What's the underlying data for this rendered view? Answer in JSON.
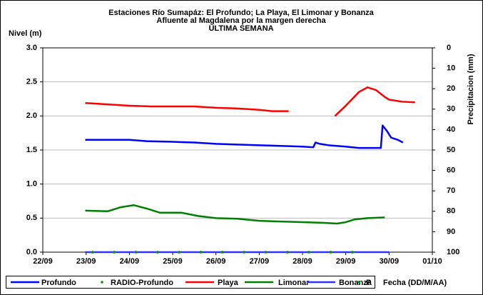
{
  "chart_data": {
    "type": "line",
    "title": [
      "Estaciones Río Sumapáz: El Profundo; La Playa, El Limonar y Bonanza",
      "Afluente al Magdalena por la margen derecha",
      "ULTIMA SEMANA"
    ],
    "ylabel": "Nivel (m)",
    "y2label": "Precipitacion (mm)",
    "xlabel": "Fecha (DD/M/AA)",
    "xlim": [
      0,
      9
    ],
    "xticks": [
      {
        "value": 0,
        "label": "22/09"
      },
      {
        "value": 1,
        "label": "23/09"
      },
      {
        "value": 2,
        "label": "24/09"
      },
      {
        "value": 3,
        "label": "25/09"
      },
      {
        "value": 4,
        "label": "26/09"
      },
      {
        "value": 5,
        "label": "27/09"
      },
      {
        "value": 6,
        "label": "28/09"
      },
      {
        "value": 7,
        "label": "29/09"
      },
      {
        "value": 8,
        "label": "30/09"
      },
      {
        "value": 9,
        "label": "01/10"
      }
    ],
    "ylim": [
      0,
      3
    ],
    "yticks": [
      {
        "value": 0,
        "label": "0.0"
      },
      {
        "value": 0.5,
        "label": "0.5"
      },
      {
        "value": 1,
        "label": "1.0"
      },
      {
        "value": 1.5,
        "label": "1.5"
      },
      {
        "value": 2,
        "label": "2.0"
      },
      {
        "value": 2.5,
        "label": "2.5"
      },
      {
        "value": 3,
        "label": "3.0"
      }
    ],
    "y2lim": [
      100,
      0
    ],
    "y2ticks": [
      0,
      10,
      20,
      30,
      40,
      50,
      60,
      70,
      80,
      90,
      100
    ],
    "grid": true,
    "legend": "bottom",
    "series": [
      {
        "name": "Profundo",
        "color": "#0000ff",
        "style": "line",
        "x": [
          0.98,
          2.0,
          2.4,
          3.0,
          3.5,
          4.0,
          4.5,
          5.0,
          5.5,
          6.0,
          6.25,
          6.3,
          6.4,
          6.6,
          7.0,
          7.3,
          7.81,
          7.85,
          7.95,
          8.05,
          8.2,
          8.32
        ],
        "values": [
          1.65,
          1.65,
          1.63,
          1.62,
          1.61,
          1.59,
          1.58,
          1.57,
          1.56,
          1.55,
          1.54,
          1.61,
          1.59,
          1.57,
          1.55,
          1.53,
          1.53,
          1.86,
          1.78,
          1.68,
          1.65,
          1.61
        ]
      },
      {
        "name": "RADIO-Profundo",
        "color": "#009900",
        "style": "dots",
        "x": [
          1.15,
          1.65,
          2.15,
          2.65,
          3.15,
          3.65,
          4.15,
          4.65,
          5.15,
          5.65,
          6.15,
          6.65,
          7.15
        ],
        "values": [
          0,
          0,
          0,
          0,
          0,
          0,
          0,
          0,
          0,
          0,
          0,
          0,
          0
        ]
      },
      {
        "name": "Playa",
        "color": "#ff0000",
        "style": "line",
        "x": [
          0.98,
          1.5,
          2.0,
          2.5,
          3.0,
          3.5,
          4.0,
          4.5,
          5.0,
          5.3,
          5.68,
          6.2,
          6.75,
          7.0,
          7.3,
          7.5,
          7.7,
          7.9,
          8.0,
          8.3,
          8.6
        ],
        "values": [
          2.19,
          2.17,
          2.15,
          2.14,
          2.14,
          2.14,
          2.12,
          2.11,
          2.09,
          2.07,
          2.07,
          null,
          2.0,
          2.15,
          2.35,
          2.42,
          2.38,
          2.28,
          2.24,
          2.21,
          2.2
        ]
      },
      {
        "name": "Limonar",
        "color": "#008000",
        "style": "line",
        "x": [
          0.98,
          1.5,
          1.8,
          2.1,
          2.4,
          2.7,
          3.2,
          3.6,
          4.0,
          4.5,
          5.0,
          5.5,
          6.0,
          6.5,
          6.8,
          7.0,
          7.2,
          7.5,
          7.9
        ],
        "values": [
          0.61,
          0.6,
          0.66,
          0.69,
          0.64,
          0.58,
          0.58,
          0.53,
          0.5,
          0.49,
          0.46,
          0.45,
          0.44,
          0.43,
          0.42,
          0.44,
          0.48,
          0.5,
          0.51
        ]
      },
      {
        "name": "Bonanza",
        "color": "#3333ff",
        "style": "line",
        "x": [
          0.98,
          8.0
        ],
        "values": [
          0,
          0
        ]
      },
      {
        "name": "P",
        "color": "#009900",
        "style": "dots",
        "x": [
          1.15,
          1.65,
          2.15,
          2.65,
          3.15,
          3.65,
          4.15,
          4.65,
          5.15,
          5.65,
          6.15,
          6.65,
          7.15
        ],
        "values": [
          0,
          0,
          0,
          0,
          0,
          0,
          0,
          0,
          0,
          0,
          0,
          0,
          0
        ]
      }
    ]
  }
}
